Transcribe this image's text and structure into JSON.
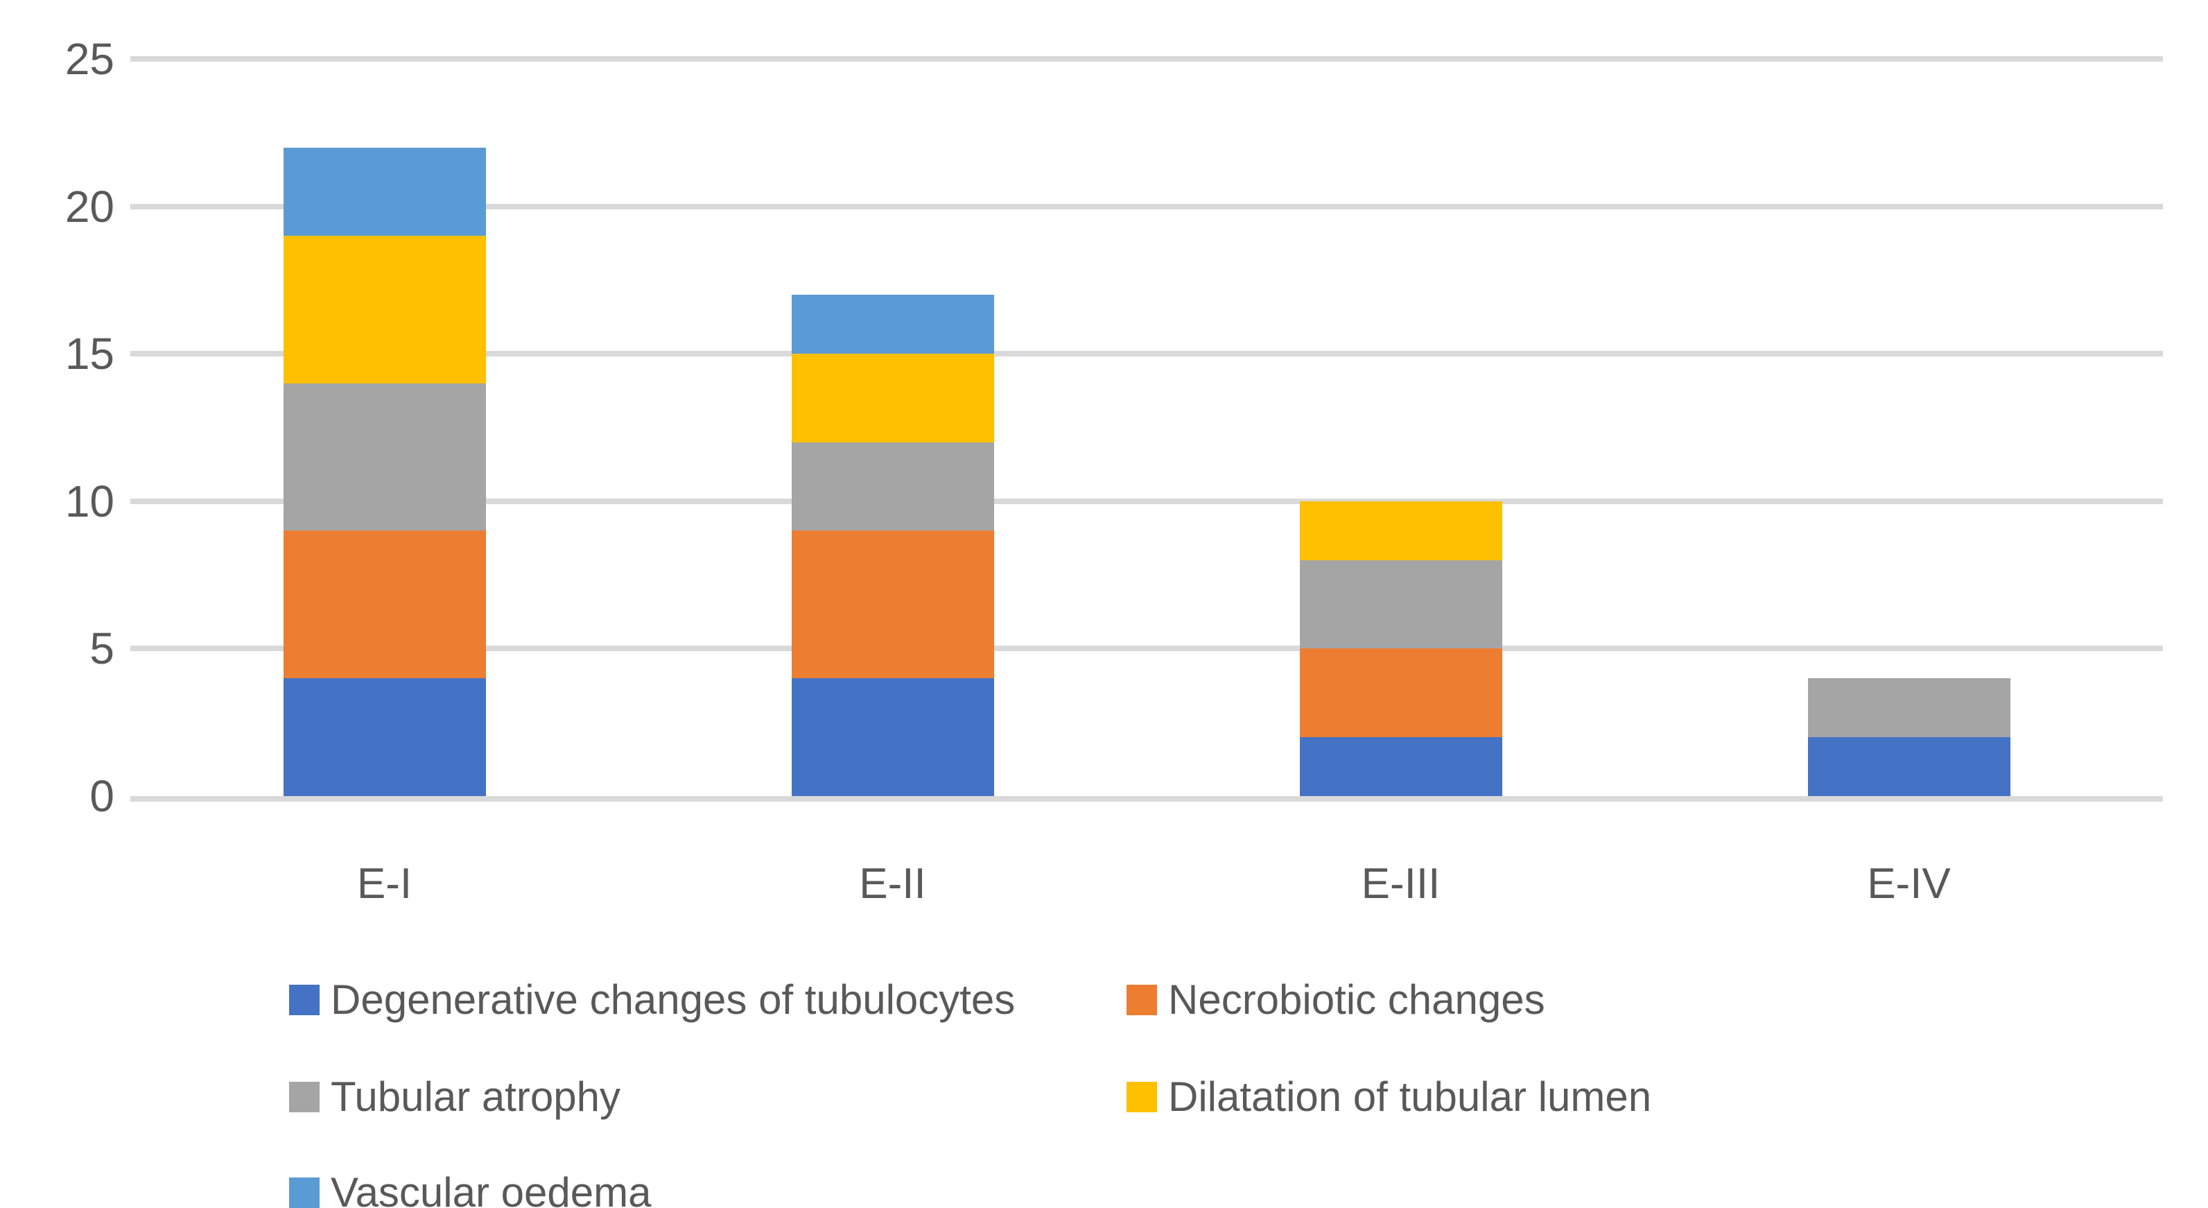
{
  "chart_data": {
    "type": "bar",
    "stacked": true,
    "title": "",
    "xlabel": "",
    "ylabel": "",
    "categories": [
      "E-I",
      "E-II",
      "E-III",
      "E-IV"
    ],
    "series": [
      {
        "name": "Degenerative changes of tubulocytes",
        "color": "#4472C4",
        "values": [
          4,
          4,
          2,
          2
        ]
      },
      {
        "name": "Necrobiotic changes",
        "color": "#ED7D31",
        "values": [
          5,
          5,
          3,
          0
        ]
      },
      {
        "name": "Tubular atrophy",
        "color": "#A5A5A5",
        "values": [
          5,
          3,
          3,
          2
        ]
      },
      {
        "name": "Dilatation of tubular lumen",
        "color": "#FFC000",
        "values": [
          5,
          3,
          2,
          0
        ]
      },
      {
        "name": "Vascular oedema",
        "color": "#5B9BD5",
        "values": [
          3,
          2,
          0,
          0
        ]
      }
    ],
    "totals": [
      22,
      17,
      10,
      4
    ],
    "ylim": [
      0,
      25
    ],
    "yticks": [
      0,
      5,
      10,
      15,
      20,
      25
    ],
    "grid": true,
    "gridline_color": "#D9D9D9",
    "axis_text_color": "#595959",
    "background_color": "#FFFFFF",
    "legend_position": "bottom",
    "legend_rows": [
      [
        "Degenerative changes of tubulocytes",
        "Necrobiotic changes"
      ],
      [
        "Tubular atrophy",
        "Dilatation of tubular lumen"
      ],
      [
        "Vascular oedema"
      ]
    ]
  }
}
